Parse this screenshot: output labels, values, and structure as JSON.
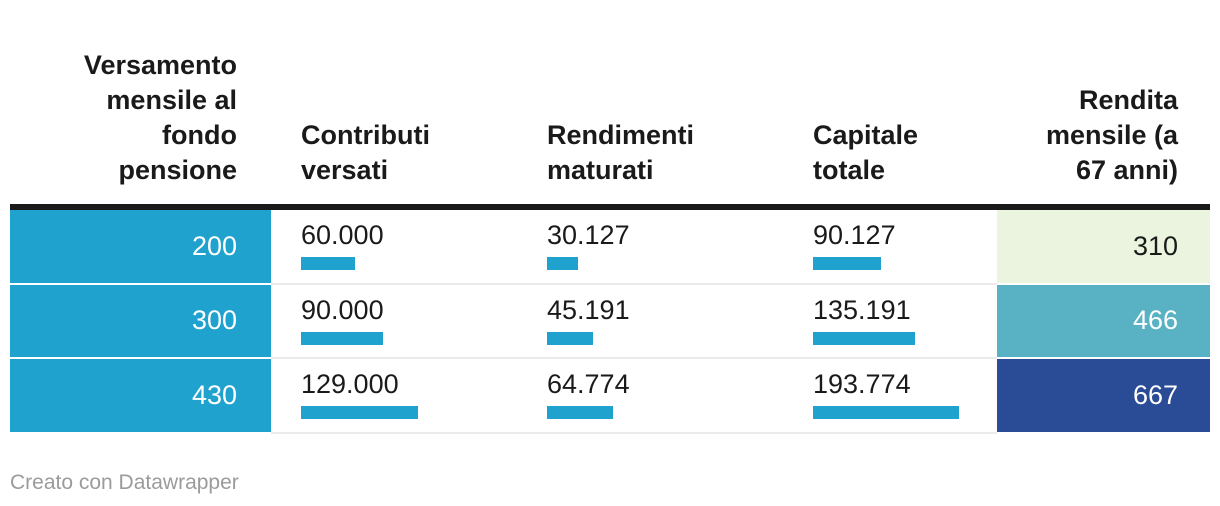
{
  "chart_data": {
    "type": "table",
    "title": "",
    "columns": [
      "Versamento mensile al fondo pensione",
      "Contributi versati",
      "Rendimenti maturati",
      "Capitale totale",
      "Rendita mensile (a 67 anni)"
    ],
    "rows": [
      [
        200,
        60000,
        30127,
        90127,
        310
      ],
      [
        300,
        90000,
        45191,
        135191,
        466
      ],
      [
        430,
        129000,
        64774,
        193774,
        667
      ]
    ],
    "bar_columns": [
      "Contributi versati",
      "Rendimenti maturati",
      "Capitale totale"
    ],
    "notes": "Columns 2-4 show cyan proportional bars under each value; column 1 cells are solid cyan with white numbers; column 5 cells shade from light green (310) to teal (466) to dark blue (667)."
  },
  "table": {
    "header": {
      "versamento": "Versamento mensile al fondo pensione",
      "contributi": "Contributi versati",
      "rendimenti": "Rendimenti maturati",
      "capitale": "Capitale totale",
      "rendita": "Rendita mensile (a 67 anni)"
    },
    "rows": [
      {
        "versamento": "200",
        "contributi": "60.000",
        "rendimenti": "30.127",
        "capitale": "90.127",
        "rendita": "310"
      },
      {
        "versamento": "300",
        "contributi": "90.000",
        "rendimenti": "45.191",
        "capitale": "135.191",
        "rendita": "466"
      },
      {
        "versamento": "430",
        "contributi": "129.000",
        "rendimenti": "64.774",
        "capitale": "193.774",
        "rendita": "667"
      }
    ]
  },
  "footer": {
    "credit": "Creato con Datawrapper"
  },
  "colors": {
    "accent_cyan": "#1FA2CE",
    "header_rule": "#1A1A1A",
    "text_dark": "#1A1A1A",
    "row_separator": "#EBEBEB",
    "footer_text": "#9B9B9B",
    "rendita_cells": [
      {
        "bg": "#EAF4DE",
        "text": "#1A1A1A"
      },
      {
        "bg": "#58B2C4",
        "text": "#FFFFFF"
      },
      {
        "bg": "#2A4B96",
        "text": "#FFFFFF"
      }
    ]
  }
}
